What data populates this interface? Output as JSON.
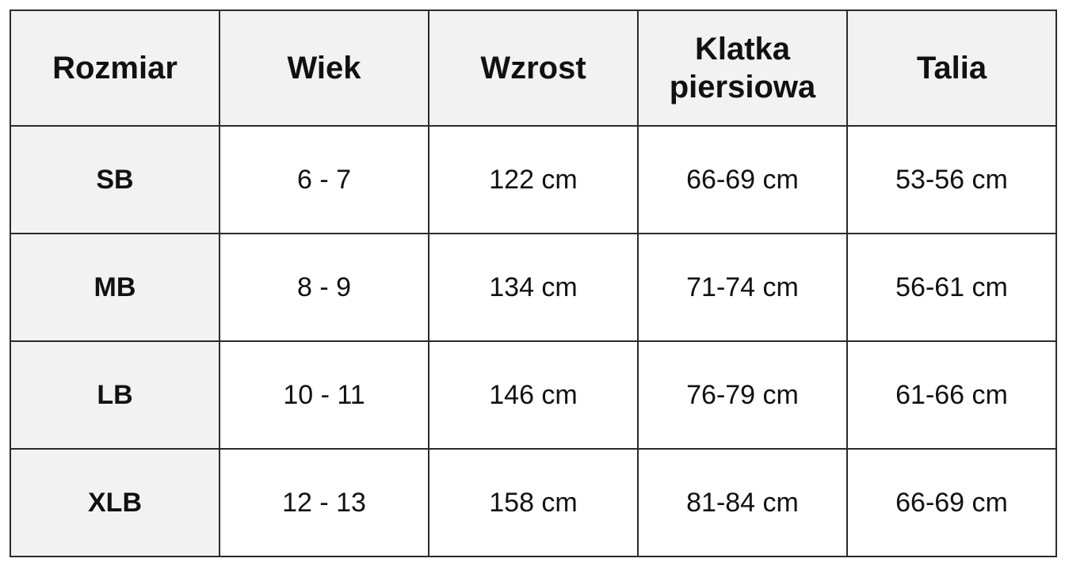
{
  "table": {
    "headers": {
      "size": "Rozmiar",
      "age": "Wiek",
      "height": "Wzrost",
      "chest": "Klatka piersiowa",
      "waist": "Talia"
    },
    "rows": [
      {
        "size": "SB",
        "age": "6 - 7",
        "height": "122 cm",
        "chest": "66-69 cm",
        "waist": "53-56 cm"
      },
      {
        "size": "MB",
        "age": "8 - 9",
        "height": "134 cm",
        "chest": "71-74 cm",
        "waist": "56-61 cm"
      },
      {
        "size": "LB",
        "age": "10 - 11",
        "height": "146 cm",
        "chest": "76-79 cm",
        "waist": "61-66 cm"
      },
      {
        "size": "XLB",
        "age": "12 - 13",
        "height": "158 cm",
        "chest": "81-84 cm",
        "waist": "66-69 cm"
      }
    ]
  },
  "colors": {
    "header_background": "#f2f2f2",
    "border": "#2b2b2b",
    "cell_background": "#ffffff"
  }
}
